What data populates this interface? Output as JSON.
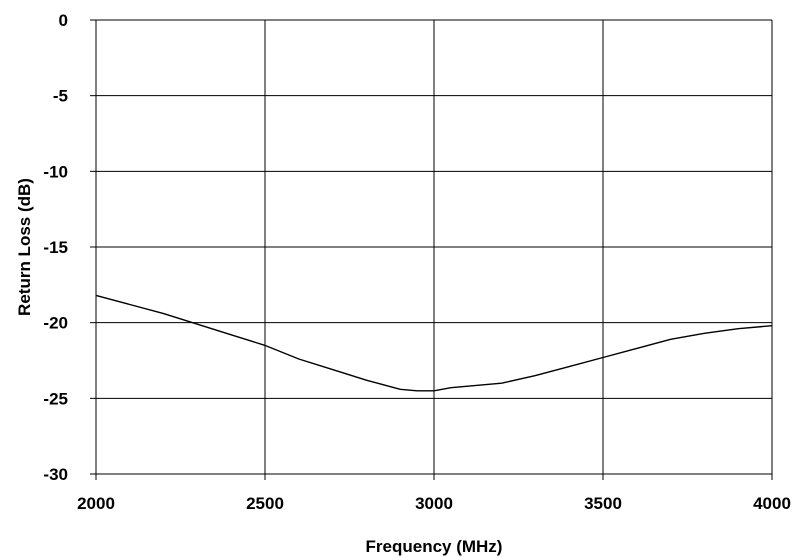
{
  "chart_data": {
    "type": "line",
    "title": "",
    "xlabel": "Frequency (MHz)",
    "ylabel": "Return Loss (dB)",
    "xlim": [
      2000,
      4000
    ],
    "ylim": [
      -30,
      0
    ],
    "x_ticks": [
      2000,
      2500,
      3000,
      3500,
      4000
    ],
    "y_ticks": [
      0,
      -5,
      -10,
      -15,
      -20,
      -25,
      -30
    ],
    "grid": true,
    "legend": "none",
    "series": [
      {
        "color": "#000000",
        "x": [
          2000,
          2100,
          2200,
          2300,
          2400,
          2500,
          2600,
          2700,
          2800,
          2900,
          2950,
          3000,
          3050,
          3100,
          3200,
          3300,
          3400,
          3500,
          3600,
          3700,
          3800,
          3900,
          4000
        ],
        "y": [
          -18.2,
          -18.8,
          -19.4,
          -20.1,
          -20.8,
          -21.5,
          -22.4,
          -23.1,
          -23.8,
          -24.4,
          -24.5,
          -24.5,
          -24.3,
          -24.2,
          -24.0,
          -23.5,
          -22.9,
          -22.3,
          -21.7,
          -21.1,
          -20.7,
          -20.4,
          -20.2
        ]
      }
    ]
  }
}
